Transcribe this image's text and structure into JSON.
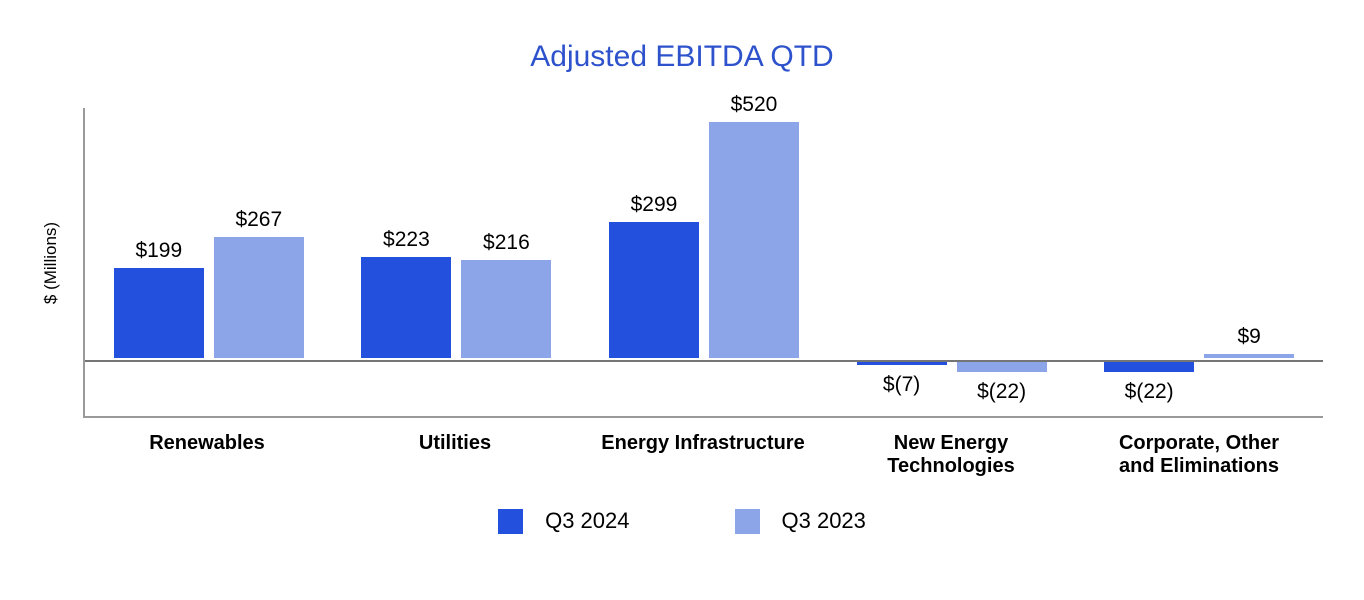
{
  "chart_data": {
    "type": "bar",
    "title": "Adjusted EBITDA QTD",
    "xlabel": "",
    "ylabel": "$ (Millions)",
    "ylim": [
      -125,
      557
    ],
    "grid": false,
    "legend_position": "bottom",
    "categories": [
      "Renewables",
      "Utilities",
      "Energy Infrastructure",
      "New Energy\nTechnologies",
      "Corporate, Other\nand Eliminations"
    ],
    "series": [
      {
        "name": "Q3 2024",
        "color": "#2350dc",
        "values": [
          199,
          223,
          299,
          -7,
          -22
        ],
        "labels": [
          "$199",
          "$223",
          "$299",
          "$(7)",
          "$(22)"
        ]
      },
      {
        "name": "Q3 2023",
        "color": "#8ca4e8",
        "values": [
          267,
          216,
          520,
          -22,
          9
        ],
        "labels": [
          "$267",
          "$216",
          "$520",
          "$(22)",
          "$9"
        ]
      }
    ],
    "colors": {
      "title_text": "#2d52cc",
      "axis_line": "#9a9a9a",
      "zero_line": "#757575",
      "label_text": "#000000",
      "background": "#ffffff"
    }
  }
}
